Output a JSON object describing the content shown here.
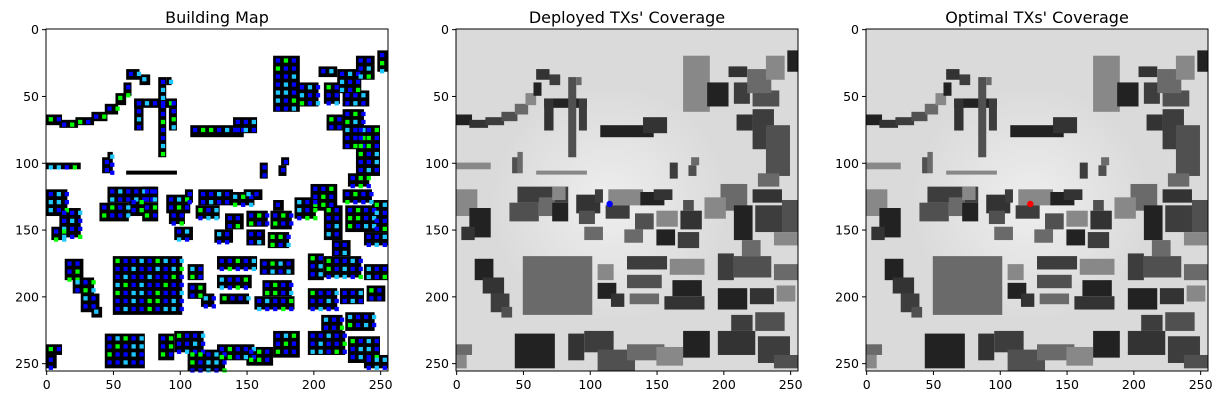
{
  "panels": [
    {
      "id": "building-map",
      "title": "Building Map",
      "style": "map",
      "tx": null
    },
    {
      "id": "deployed-coverage",
      "title": "Deployed TXs' Coverage",
      "style": "coverage",
      "tx": {
        "x": 115,
        "y": 131,
        "color": "#0000ff"
      }
    },
    {
      "id": "optimal-coverage",
      "title": "Optimal TXs' Coverage",
      "style": "coverage",
      "tx": {
        "x": 123,
        "y": 131,
        "color": "#ff0000"
      }
    }
  ],
  "axes": {
    "xticks": [
      "0",
      "50",
      "100",
      "150",
      "200",
      "250"
    ],
    "yticks": [
      "0",
      "50",
      "100",
      "150",
      "200",
      "250"
    ],
    "xtick_values": [
      0,
      50,
      100,
      150,
      200,
      250
    ],
    "ytick_values": [
      0,
      50,
      100,
      150,
      200,
      250
    ],
    "range": [
      0,
      256
    ]
  },
  "chart_data": {
    "type": "heatmap",
    "panels": [
      "Building Map",
      "Deployed TXs' Coverage",
      "Optimal TXs' Coverage"
    ],
    "xlim": [
      0,
      256
    ],
    "ylim": [
      256,
      0
    ],
    "xticks": [
      0,
      50,
      100,
      150,
      200,
      250
    ],
    "yticks": [
      0,
      50,
      100,
      150,
      200,
      250
    ],
    "candidate_tx_colors": [
      "#0000ff",
      "#1ec8ff",
      "#00ff00"
    ],
    "transmitters": [
      {
        "panel": "Deployed TXs' Coverage",
        "x": 115,
        "y": 131,
        "color": "#0000ff"
      },
      {
        "panel": "Optimal TXs' Coverage",
        "x": 123,
        "y": 131,
        "color": "#ff0000"
      }
    ],
    "buildings": [
      [
        33,
        3,
        12,
        15
      ],
      [
        65,
        36,
        11,
        11
      ],
      [
        74,
        44,
        44,
        41
      ],
      [
        118,
        44,
        23,
        21
      ],
      [
        136,
        46,
        73,
        45
      ],
      [
        154,
        27,
        20,
        48
      ],
      [
        82,
        43,
        61,
        45
      ],
      [
        103,
        53,
        73,
        52
      ],
      [
        108,
        97,
        71,
        39
      ],
      [
        108,
        97,
        62,
        7
      ],
      [
        128,
        46,
        40,
        23
      ],
      [
        182,
        31,
        16,
        19
      ],
      [
        157,
        61,
        7,
        52
      ],
      [
        88,
        110,
        61,
        55
      ],
      [
        138,
        109,
        59,
        54
      ],
      [
        175,
        74,
        12,
        9
      ],
      [
        208,
        69,
        17,
        9
      ],
      [
        200,
        137,
        14,
        11
      ],
      [
        181,
        32,
        13,
        19
      ],
      [
        232,
        74,
        42,
        5
      ],
      [
        248,
        67,
        15,
        5
      ],
      [
        102,
        76,
        21,
        23
      ],
      [
        98,
        74,
        3,
        26
      ],
      [
        101,
        46,
        59,
        39
      ],
      [
        10,
        122,
        92,
        34
      ],
      [
        47,
        114,
        40,
        34
      ],
      [
        12,
        197,
        9,
        12
      ],
      [
        52,
        130,
        26,
        27
      ],
      [
        45,
        125,
        38,
        31
      ],
      [
        59,
        133,
        16,
        12
      ],
      [
        69,
        126,
        14,
        21
      ],
      [
        70,
        118,
        11,
        19
      ],
      [
        114,
        132,
        20,
        14
      ],
      [
        89,
        140,
        10,
        16
      ],
      [
        63,
        177,
        31,
        15
      ],
      [
        106,
        168,
        57,
        29
      ],
      [
        128,
        168,
        11,
        11
      ],
      [
        129,
        196,
        12,
        15
      ],
      [
        150,
        173,
        22,
        11
      ],
      [
        174,
        217,
        53,
        45
      ],
      [
        207,
        188,
        40,
        19
      ],
      [
        212,
        218,
        65,
        31
      ],
      [
        213,
        214,
        57,
        15
      ],
      [
        212,
        215,
        50,
        29
      ],
      [
        211,
        190,
        63,
        5
      ],
      [
        47,
        185,
        21,
        15
      ],
      [
        55,
        213,
        15,
        44
      ],
      [
        104,
        140,
        45,
        41
      ],
      [
        107,
        166,
        52,
        39
      ],
      [
        107,
        199,
        45,
        17
      ],
      [
        111,
        221,
        20,
        25
      ],
      [
        113,
        225,
        25,
        15
      ],
      [
        101,
        238,
        26,
        50
      ],
      [
        111,
        247,
        9,
        9
      ],
      [
        99,
        254,
        23,
        9
      ],
      [
        62,
        131,
        33,
        5
      ],
      [
        88,
        140,
        11,
        5
      ],
      [
        95,
        148,
        10,
        14
      ],
      [
        99,
        147,
        27,
        18
      ],
      [
        100,
        182,
        11,
        10
      ],
      [
        48,
        233,
        31,
        47
      ],
      [
        61,
        214,
        9,
        15
      ],
      [
        98,
        182,
        12,
        16
      ],
      [
        135,
        180,
        18,
        12
      ],
      [
        193,
        174,
        11,
        14
      ],
      [
        152,
        151,
        24,
        24
      ],
      [
        168,
        218,
        10,
        13
      ],
      [
        174,
        218,
        8,
        10
      ],
      [
        160,
        232,
        12,
        16
      ],
      [
        94,
        261,
        33,
        11
      ],
      [
        143,
        255,
        44,
        16
      ],
      [
        148,
        233,
        31,
        16
      ],
      [
        150,
        211,
        24,
        17
      ],
      [
        176,
        210,
        14,
        18
      ]
    ]
  }
}
